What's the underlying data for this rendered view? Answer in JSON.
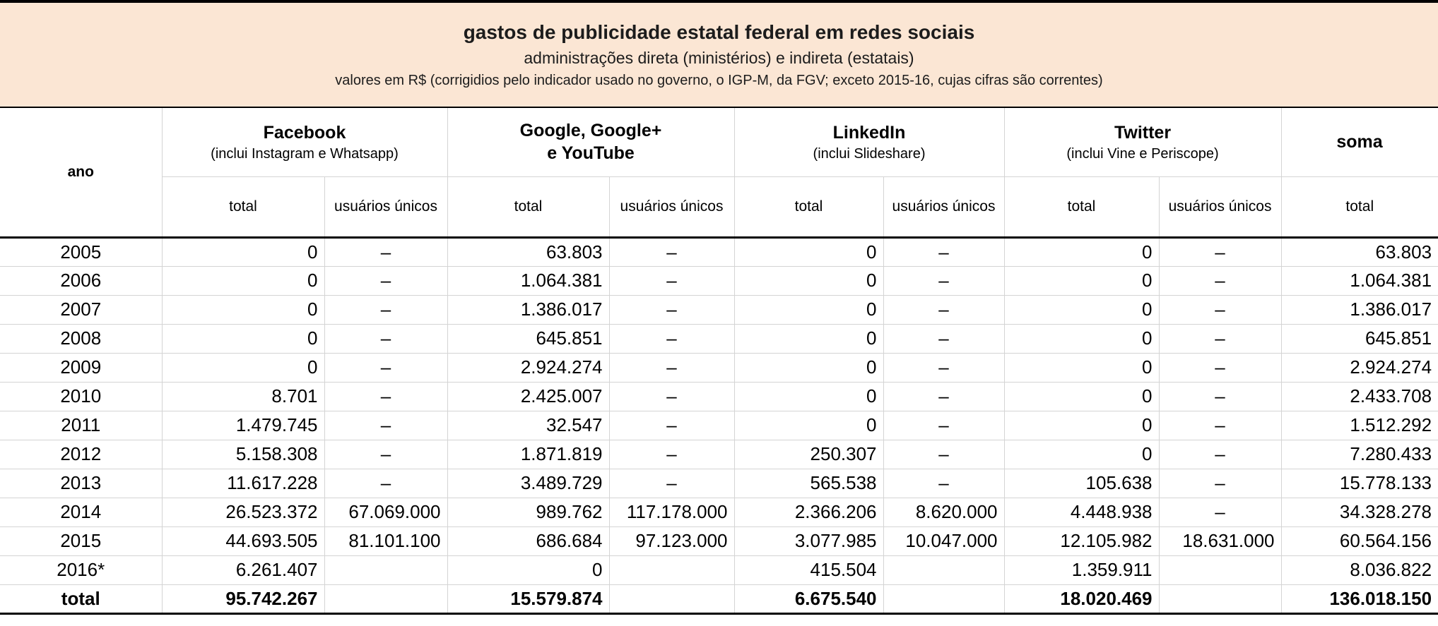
{
  "chart_data": {
    "type": "table",
    "title": "gastos de publicidade estatal federal em redes sociais",
    "subtitle": "administrações direta (ministérios) e indireta (estatais)",
    "note": "valores em R$ (corrigidios pelo indicador usado no governo, o IGP-M, da FGV; exceto 2015-16, cujas cifras são correntes)",
    "year_header": "ano",
    "groups": [
      {
        "line1": "Facebook",
        "line2": "(inclui Instagram e Whatsapp)"
      },
      {
        "line1": "Google, Google+",
        "line2": "e YouTube"
      },
      {
        "line1": "LinkedIn",
        "line2": "(inclui Slideshare)"
      },
      {
        "line1": "Twitter",
        "line2": "(inclui Vine e Periscope)"
      },
      {
        "line1": "soma"
      }
    ],
    "subheaders": [
      "total",
      "usuários únicos",
      "total",
      "usuários únicos",
      "total",
      "usuários únicos",
      "total",
      "usuários únicos",
      "total"
    ],
    "rows": [
      {
        "year": "2005",
        "bold": false,
        "values": [
          "0",
          "–",
          "63.803",
          "–",
          "0",
          "–",
          "0",
          "–",
          "63.803"
        ]
      },
      {
        "year": "2006",
        "bold": false,
        "values": [
          "0",
          "–",
          "1.064.381",
          "–",
          "0",
          "–",
          "0",
          "–",
          "1.064.381"
        ]
      },
      {
        "year": "2007",
        "bold": false,
        "values": [
          "0",
          "–",
          "1.386.017",
          "–",
          "0",
          "–",
          "0",
          "–",
          "1.386.017"
        ]
      },
      {
        "year": "2008",
        "bold": false,
        "values": [
          "0",
          "–",
          "645.851",
          "–",
          "0",
          "–",
          "0",
          "–",
          "645.851"
        ]
      },
      {
        "year": "2009",
        "bold": false,
        "values": [
          "0",
          "–",
          "2.924.274",
          "–",
          "0",
          "–",
          "0",
          "–",
          "2.924.274"
        ]
      },
      {
        "year": "2010",
        "bold": false,
        "values": [
          "8.701",
          "–",
          "2.425.007",
          "–",
          "0",
          "–",
          "0",
          "–",
          "2.433.708"
        ]
      },
      {
        "year": "2011",
        "bold": false,
        "values": [
          "1.479.745",
          "–",
          "32.547",
          "–",
          "0",
          "–",
          "0",
          "–",
          "1.512.292"
        ]
      },
      {
        "year": "2012",
        "bold": false,
        "values": [
          "5.158.308",
          "–",
          "1.871.819",
          "–",
          "250.307",
          "–",
          "0",
          "–",
          "7.280.433"
        ]
      },
      {
        "year": "2013",
        "bold": false,
        "values": [
          "11.617.228",
          "–",
          "3.489.729",
          "–",
          "565.538",
          "–",
          "105.638",
          "–",
          "15.778.133"
        ]
      },
      {
        "year": "2014",
        "bold": false,
        "values": [
          "26.523.372",
          "67.069.000",
          "989.762",
          "117.178.000",
          "2.366.206",
          "8.620.000",
          "4.448.938",
          "–",
          "34.328.278"
        ]
      },
      {
        "year": "2015",
        "bold": false,
        "values": [
          "44.693.505",
          "81.101.100",
          "686.684",
          "97.123.000",
          "3.077.985",
          "10.047.000",
          "12.105.982",
          "18.631.000",
          "60.564.156"
        ]
      },
      {
        "year": "2016*",
        "bold": false,
        "values": [
          "6.261.407",
          "",
          "0",
          "",
          "415.504",
          "",
          "1.359.911",
          "",
          "8.036.822"
        ]
      },
      {
        "year": "total",
        "bold": true,
        "values": [
          "95.742.267",
          "",
          "15.579.874",
          "",
          "6.675.540",
          "",
          "18.020.469",
          "",
          "136.018.150"
        ]
      }
    ],
    "colors": {
      "title_background": "#fbe6d4",
      "grid_line": "#d4d4d4",
      "heavy_rule": "#000000"
    }
  }
}
